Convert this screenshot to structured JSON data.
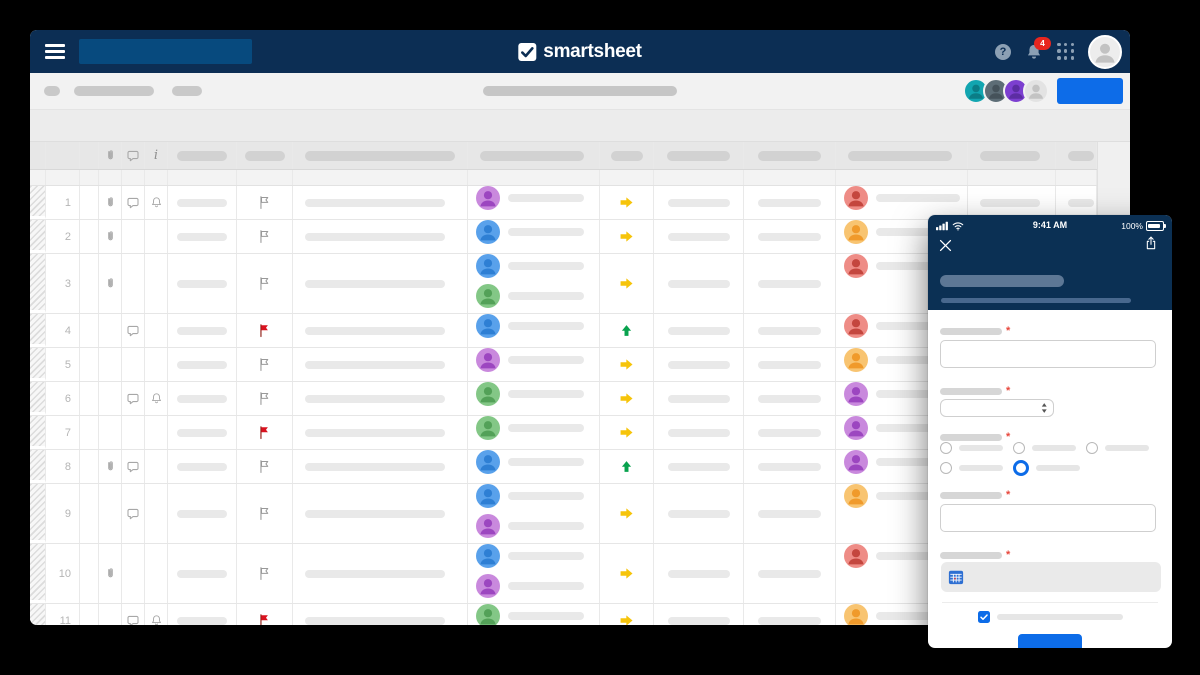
{
  "colors": {
    "accent_blue": "#0d6ce8",
    "topbar_navy": "#0c2e54",
    "phone_navy": "#0b3054",
    "flag_red": "#d9121f",
    "flag_gray": "#999999",
    "arrow_yellow": "#f6c40a",
    "arrow_green": "#09a24e",
    "badge_red": "#e8261f"
  },
  "topbar": {
    "logo_text": "smartsheet",
    "help_glyph": "?",
    "notification_count": "4",
    "icons": [
      "menu-icon",
      "help-icon",
      "bell-icon",
      "apps-grid-icon",
      "avatar"
    ]
  },
  "toolbar": {
    "collaborators": [
      {
        "bg": "#12a5b0",
        "fg": "#0b7d86"
      },
      {
        "bg": "#5d6d76",
        "fg": "#45525a"
      },
      {
        "bg": "#7c3fd0",
        "fg": "#5c2da3"
      },
      {
        "bg": "#e3e3e3",
        "fg": "#c3c3c3"
      }
    ]
  },
  "grid": {
    "info_glyph": "i",
    "header_icons": [
      "paperclip-icon",
      "comment-icon",
      "info-icon"
    ],
    "avatar_palette": {
      "purple": {
        "bg": "#c989dd",
        "fg": "#9c46c0"
      },
      "blue": {
        "bg": "#59a1eb",
        "fg": "#2e7fd4"
      },
      "green": {
        "bg": "#83c786",
        "fg": "#53a158"
      },
      "red": {
        "bg": "#ee8c86",
        "fg": "#c4463e"
      },
      "orange": {
        "bg": "#f8c471",
        "fg": "#f09a2b"
      }
    },
    "rows": [
      {
        "num": "1",
        "double": false,
        "icons": [
          "paperclip",
          "comment",
          "bell"
        ],
        "flag": "gray",
        "assignees": [
          "purple"
        ],
        "arrow": "right",
        "contact": "red"
      },
      {
        "num": "2",
        "double": false,
        "icons": [
          "paperclip"
        ],
        "flag": "gray",
        "assignees": [
          "blue"
        ],
        "arrow": "right",
        "contact": "orange"
      },
      {
        "num": "3",
        "double": true,
        "icons": [
          "paperclip"
        ],
        "flag": "gray",
        "assignees": [
          "blue",
          "green"
        ],
        "arrow": "right",
        "contact": "red"
      },
      {
        "num": "4",
        "double": false,
        "icons": [
          "comment"
        ],
        "flag": "red",
        "assignees": [
          "blue"
        ],
        "arrow": "up",
        "contact": "red"
      },
      {
        "num": "5",
        "double": false,
        "icons": [],
        "flag": "gray",
        "assignees": [
          "purple"
        ],
        "arrow": "right",
        "contact": "orange"
      },
      {
        "num": "6",
        "double": false,
        "icons": [
          "comment",
          "bell"
        ],
        "flag": "gray",
        "assignees": [
          "green"
        ],
        "arrow": "right",
        "contact": "purple"
      },
      {
        "num": "7",
        "double": false,
        "icons": [],
        "flag": "red",
        "assignees": [
          "green"
        ],
        "arrow": "right",
        "contact": "purple"
      },
      {
        "num": "8",
        "double": false,
        "icons": [
          "paperclip",
          "comment"
        ],
        "flag": "gray",
        "assignees": [
          "blue"
        ],
        "arrow": "up",
        "contact": "purple"
      },
      {
        "num": "9",
        "double": true,
        "icons": [
          "comment"
        ],
        "flag": "gray",
        "assignees": [
          "blue",
          "purple"
        ],
        "arrow": "right",
        "contact": "orange"
      },
      {
        "num": "10",
        "double": true,
        "icons": [
          "paperclip"
        ],
        "flag": "gray",
        "assignees": [
          "blue",
          "purple"
        ],
        "arrow": "right",
        "contact": "red"
      },
      {
        "num": "11",
        "double": false,
        "icons": [
          "comment",
          "bell"
        ],
        "flag": "red",
        "assignees": [
          "green"
        ],
        "arrow": "right",
        "contact": "orange"
      }
    ]
  },
  "phone": {
    "time": "9:41 AM",
    "battery_percent": "100%",
    "required_mark": "*",
    "icons": [
      "close-icon",
      "share-icon",
      "calendar-icon",
      "select-stepper-icon"
    ],
    "radio_groups": {
      "row1_count": 3,
      "row2_count": 2,
      "selected_index": 4
    },
    "checkbox_checked": true
  }
}
